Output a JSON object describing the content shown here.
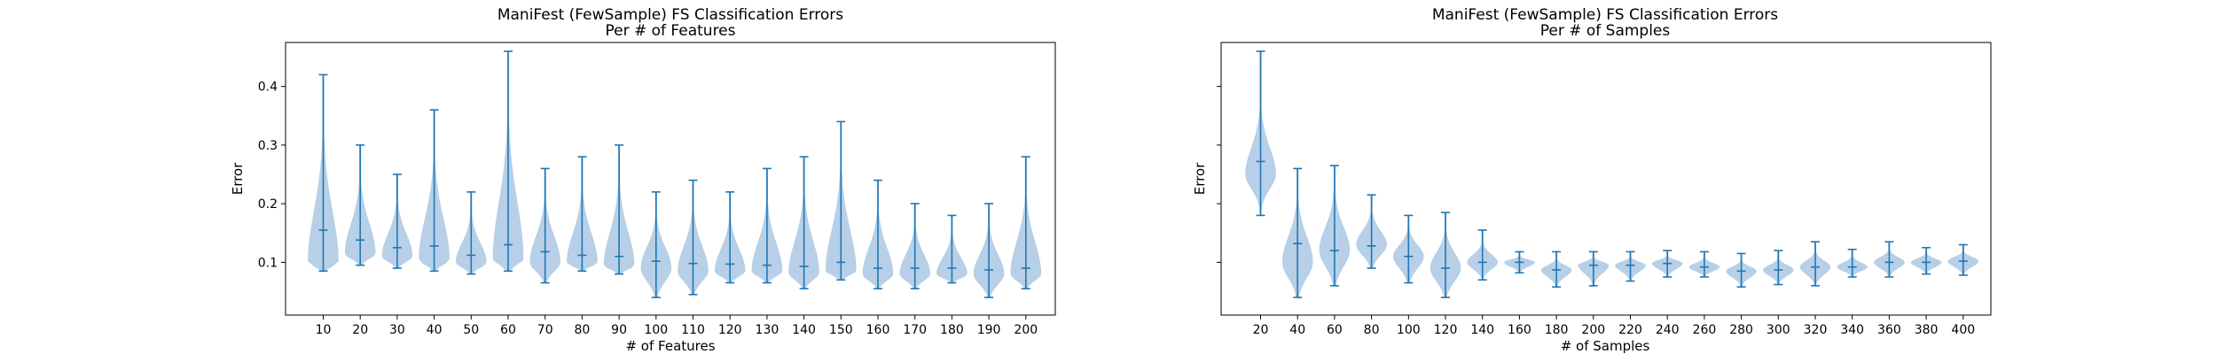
{
  "chart_data": [
    {
      "type": "violin",
      "title": "ManiFest (FewSample) FS Classification Errors",
      "subtitle": "Per # of Features",
      "xlabel": "# of Features",
      "ylabel": "Error",
      "ylim": [
        0.01,
        0.475
      ],
      "yticks": [
        0.1,
        0.2,
        0.3,
        0.4
      ],
      "ytick_labels": [
        "0.1",
        "0.2",
        "0.3",
        "0.4"
      ],
      "categories": [
        "10",
        "20",
        "30",
        "40",
        "50",
        "60",
        "70",
        "80",
        "90",
        "100",
        "110",
        "120",
        "130",
        "140",
        "150",
        "160",
        "170",
        "180",
        "190",
        "200"
      ],
      "violins": [
        {
          "min": 0.085,
          "max": 0.42,
          "median": 0.155,
          "peak": 0.1,
          "sharp": 1.0
        },
        {
          "min": 0.095,
          "max": 0.3,
          "median": 0.138,
          "peak": 0.115,
          "sharp": 1.0
        },
        {
          "min": 0.09,
          "max": 0.25,
          "median": 0.125,
          "peak": 0.11,
          "sharp": 1.0
        },
        {
          "min": 0.085,
          "max": 0.36,
          "median": 0.128,
          "peak": 0.105,
          "sharp": 1.0
        },
        {
          "min": 0.08,
          "max": 0.22,
          "median": 0.112,
          "peak": 0.1,
          "sharp": 1.0
        },
        {
          "min": 0.085,
          "max": 0.46,
          "median": 0.13,
          "peak": 0.105,
          "sharp": 1.0
        },
        {
          "min": 0.065,
          "max": 0.26,
          "median": 0.118,
          "peak": 0.1,
          "sharp": 1.0
        },
        {
          "min": 0.085,
          "max": 0.28,
          "median": 0.112,
          "peak": 0.1,
          "sharp": 1.0
        },
        {
          "min": 0.08,
          "max": 0.3,
          "median": 0.11,
          "peak": 0.095,
          "sharp": 1.0
        },
        {
          "min": 0.04,
          "max": 0.22,
          "median": 0.102,
          "peak": 0.09,
          "sharp": 1.0
        },
        {
          "min": 0.045,
          "max": 0.24,
          "median": 0.098,
          "peak": 0.085,
          "sharp": 1.0
        },
        {
          "min": 0.065,
          "max": 0.22,
          "median": 0.097,
          "peak": 0.085,
          "sharp": 1.0
        },
        {
          "min": 0.065,
          "max": 0.26,
          "median": 0.095,
          "peak": 0.085,
          "sharp": 1.0
        },
        {
          "min": 0.055,
          "max": 0.28,
          "median": 0.093,
          "peak": 0.082,
          "sharp": 1.0
        },
        {
          "min": 0.07,
          "max": 0.34,
          "median": 0.1,
          "peak": 0.085,
          "sharp": 1.0
        },
        {
          "min": 0.055,
          "max": 0.24,
          "median": 0.09,
          "peak": 0.08,
          "sharp": 1.0
        },
        {
          "min": 0.055,
          "max": 0.2,
          "median": 0.09,
          "peak": 0.08,
          "sharp": 1.0
        },
        {
          "min": 0.065,
          "max": 0.18,
          "median": 0.09,
          "peak": 0.08,
          "sharp": 1.0
        },
        {
          "min": 0.04,
          "max": 0.2,
          "median": 0.087,
          "peak": 0.08,
          "sharp": 1.0
        },
        {
          "min": 0.055,
          "max": 0.28,
          "median": 0.09,
          "peak": 0.08,
          "sharp": 1.0
        }
      ],
      "color": "#1f77b4",
      "fill": "#aac8e4",
      "grid": false
    },
    {
      "type": "violin",
      "title": "ManiFest (FewSample) FS Classification Errors",
      "subtitle": "Per # of Samples",
      "xlabel": "# of Samples",
      "ylabel": "Error",
      "ylim": [
        0.01,
        0.475
      ],
      "yticks": [
        0.1,
        0.2,
        0.3,
        0.4
      ],
      "ytick_labels": [
        "",
        "",
        "",
        ""
      ],
      "categories": [
        "20",
        "40",
        "60",
        "80",
        "100",
        "120",
        "140",
        "160",
        "180",
        "200",
        "220",
        "240",
        "260",
        "280",
        "300",
        "320",
        "340",
        "360",
        "380",
        "400"
      ],
      "violins": [
        {
          "min": 0.18,
          "max": 0.46,
          "median": 0.272,
          "peak": 0.25,
          "sharp": 1.6
        },
        {
          "min": 0.04,
          "max": 0.26,
          "median": 0.132,
          "peak": 0.1,
          "sharp": 1.0
        },
        {
          "min": 0.06,
          "max": 0.265,
          "median": 0.12,
          "peak": 0.12,
          "sharp": 1.0
        },
        {
          "min": 0.09,
          "max": 0.215,
          "median": 0.128,
          "peak": 0.13,
          "sharp": 1.0
        },
        {
          "min": 0.065,
          "max": 0.18,
          "median": 0.11,
          "peak": 0.11,
          "sharp": 1.0
        },
        {
          "min": 0.04,
          "max": 0.185,
          "median": 0.09,
          "peak": 0.09,
          "sharp": 1.0
        },
        {
          "min": 0.07,
          "max": 0.155,
          "median": 0.1,
          "peak": 0.1,
          "sharp": 1.3
        },
        {
          "min": 0.082,
          "max": 0.118,
          "median": 0.1,
          "peak": 0.1,
          "sharp": 1.3
        },
        {
          "min": 0.058,
          "max": 0.118,
          "median": 0.087,
          "peak": 0.087,
          "sharp": 1.3
        },
        {
          "min": 0.06,
          "max": 0.118,
          "median": 0.095,
          "peak": 0.095,
          "sharp": 1.3
        },
        {
          "min": 0.068,
          "max": 0.118,
          "median": 0.095,
          "peak": 0.095,
          "sharp": 1.3
        },
        {
          "min": 0.075,
          "max": 0.12,
          "median": 0.098,
          "peak": 0.098,
          "sharp": 1.3
        },
        {
          "min": 0.075,
          "max": 0.118,
          "median": 0.092,
          "peak": 0.092,
          "sharp": 1.3
        },
        {
          "min": 0.058,
          "max": 0.115,
          "median": 0.085,
          "peak": 0.085,
          "sharp": 1.3
        },
        {
          "min": 0.062,
          "max": 0.12,
          "median": 0.087,
          "peak": 0.087,
          "sharp": 1.3
        },
        {
          "min": 0.06,
          "max": 0.135,
          "median": 0.092,
          "peak": 0.092,
          "sharp": 1.3
        },
        {
          "min": 0.075,
          "max": 0.122,
          "median": 0.092,
          "peak": 0.092,
          "sharp": 1.3
        },
        {
          "min": 0.075,
          "max": 0.135,
          "median": 0.1,
          "peak": 0.1,
          "sharp": 1.3
        },
        {
          "min": 0.08,
          "max": 0.125,
          "median": 0.1,
          "peak": 0.1,
          "sharp": 1.3
        },
        {
          "min": 0.078,
          "max": 0.13,
          "median": 0.102,
          "peak": 0.102,
          "sharp": 1.3
        }
      ],
      "color": "#1f77b4",
      "fill": "#aac8e4",
      "grid": false
    }
  ]
}
